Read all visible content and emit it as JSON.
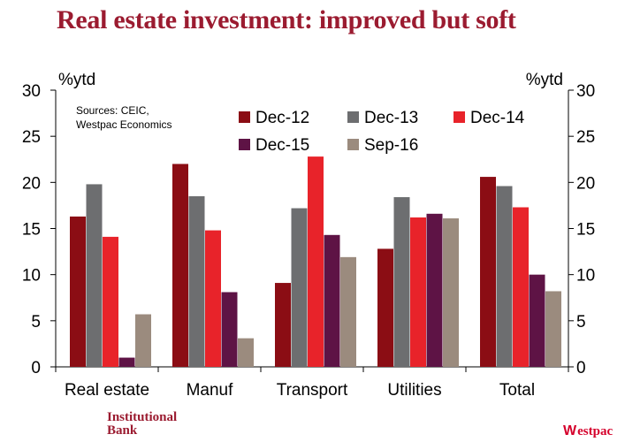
{
  "page": {
    "title": "Real estate investment: improved but soft"
  },
  "chart_data": {
    "type": "bar",
    "ylabel_left": "%ytd",
    "ylabel_right": "%ytd",
    "ylim": [
      0,
      30
    ],
    "yticks": [
      0,
      5,
      10,
      15,
      20,
      25,
      30
    ],
    "categories": [
      "Real estate",
      "Manuf",
      "Transport",
      "Utilities",
      "Total"
    ],
    "series": [
      {
        "name": "Dec-12",
        "color": "#8b0d14",
        "values": [
          16.3,
          22.0,
          9.1,
          12.8,
          20.6
        ]
      },
      {
        "name": "Dec-13",
        "color": "#6d6e70",
        "values": [
          19.8,
          18.5,
          17.2,
          18.4,
          19.6
        ]
      },
      {
        "name": "Dec-14",
        "color": "#e8232a",
        "values": [
          14.1,
          14.8,
          22.8,
          16.2,
          17.3
        ]
      },
      {
        "name": "Dec-15",
        "color": "#5e1345",
        "values": [
          1.0,
          8.1,
          14.3,
          16.6,
          10.0
        ]
      },
      {
        "name": "Sep-16",
        "color": "#9b8b7e",
        "values": [
          5.7,
          3.1,
          11.9,
          16.1,
          8.2
        ]
      }
    ],
    "legend_placement": "top",
    "source_note": [
      "Sources: CEIC,",
      "Westpac Economics"
    ],
    "grid": false
  },
  "footer": {
    "left_logo_line1": "Institutional",
    "left_logo_line2": "Bank",
    "right_logo": "estpac",
    "right_logo_mark": "W"
  }
}
